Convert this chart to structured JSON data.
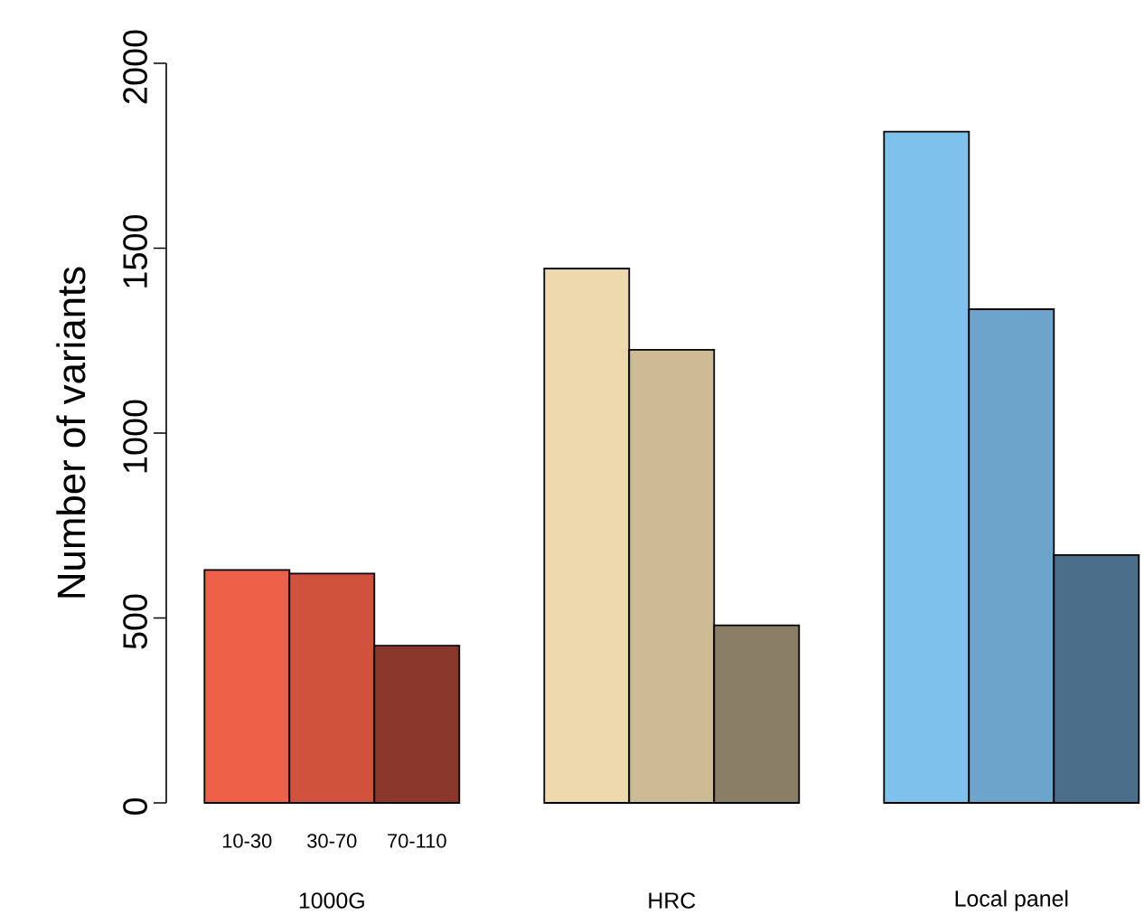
{
  "chart_data": {
    "type": "bar",
    "ylabel": "Number of variants",
    "categories": [
      "1000G",
      "HRC",
      "Local panel"
    ],
    "series": [
      {
        "name": "10-30",
        "colors": [
          "#ee6048",
          "#edd9ad",
          "#7fc1ed"
        ],
        "values": [
          630,
          1445,
          1815
        ]
      },
      {
        "name": "30-70",
        "colors": [
          "#d0523c",
          "#cdbb96",
          "#6ca4cb"
        ],
        "values": [
          620,
          1225,
          1335
        ]
      },
      {
        "name": "70-110",
        "colors": [
          "#8b362a",
          "#8b7e67",
          "#4b6f8b"
        ],
        "values": [
          425,
          480,
          670
        ]
      }
    ],
    "ylim": [
      0,
      2000
    ],
    "yticks": [
      0,
      500,
      1000,
      1500,
      2000
    ]
  }
}
